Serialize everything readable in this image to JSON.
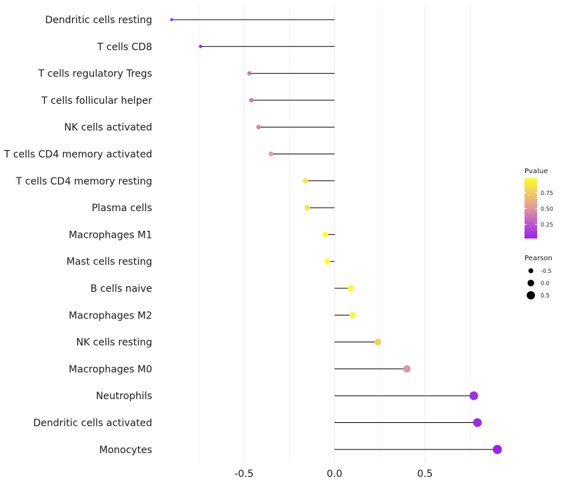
{
  "chart_data": {
    "type": "lollipop",
    "title": "",
    "xlabel": "",
    "ylabel": "",
    "xlim": [
      -0.93,
      0.93
    ],
    "xticks": [
      -0.5,
      0.0,
      0.5
    ],
    "xtick_labels": [
      "-0.5",
      "0.0",
      "0.5"
    ],
    "grid": true,
    "categories": [
      "Dendritic cells resting",
      "T cells CD8",
      "T cells regulatory  Tregs",
      "T cells follicular helper",
      "NK cells activated",
      "T cells CD4 memory activated",
      "T cells CD4 memory resting",
      "Plasma cells",
      "Macrophages M1",
      "Mast cells resting",
      "B cells naive",
      "Macrophages M2",
      "NK cells resting",
      "Macrophages M0",
      "Neutrophils",
      "Dendritic cells activated",
      "Monocytes"
    ],
    "pearson": [
      -0.9,
      -0.74,
      -0.47,
      -0.46,
      -0.42,
      -0.35,
      -0.16,
      -0.15,
      -0.05,
      -0.04,
      0.09,
      0.1,
      0.24,
      0.4,
      0.77,
      0.79,
      0.9
    ],
    "pvalue": [
      0.03,
      0.05,
      0.37,
      0.38,
      0.43,
      0.55,
      0.84,
      0.85,
      0.96,
      0.98,
      0.95,
      0.94,
      0.78,
      0.49,
      0.08,
      0.06,
      0.03
    ],
    "legend": {
      "position": "right",
      "color": {
        "title": "Pvalue",
        "ticks": [
          0.25,
          0.5,
          0.75
        ],
        "tick_labels": [
          "0.25",
          "0.50",
          "0.75"
        ],
        "range": [
          0.03,
          0.98
        ],
        "low_color": "#9B22F0",
        "mid_color": "#E096A0",
        "high_color": "#FFFF22"
      },
      "size": {
        "title": "Pearson",
        "values": [
          -0.5,
          0.0,
          0.5
        ],
        "labels": [
          "-0.5",
          "0.0",
          "0.5"
        ]
      }
    }
  }
}
